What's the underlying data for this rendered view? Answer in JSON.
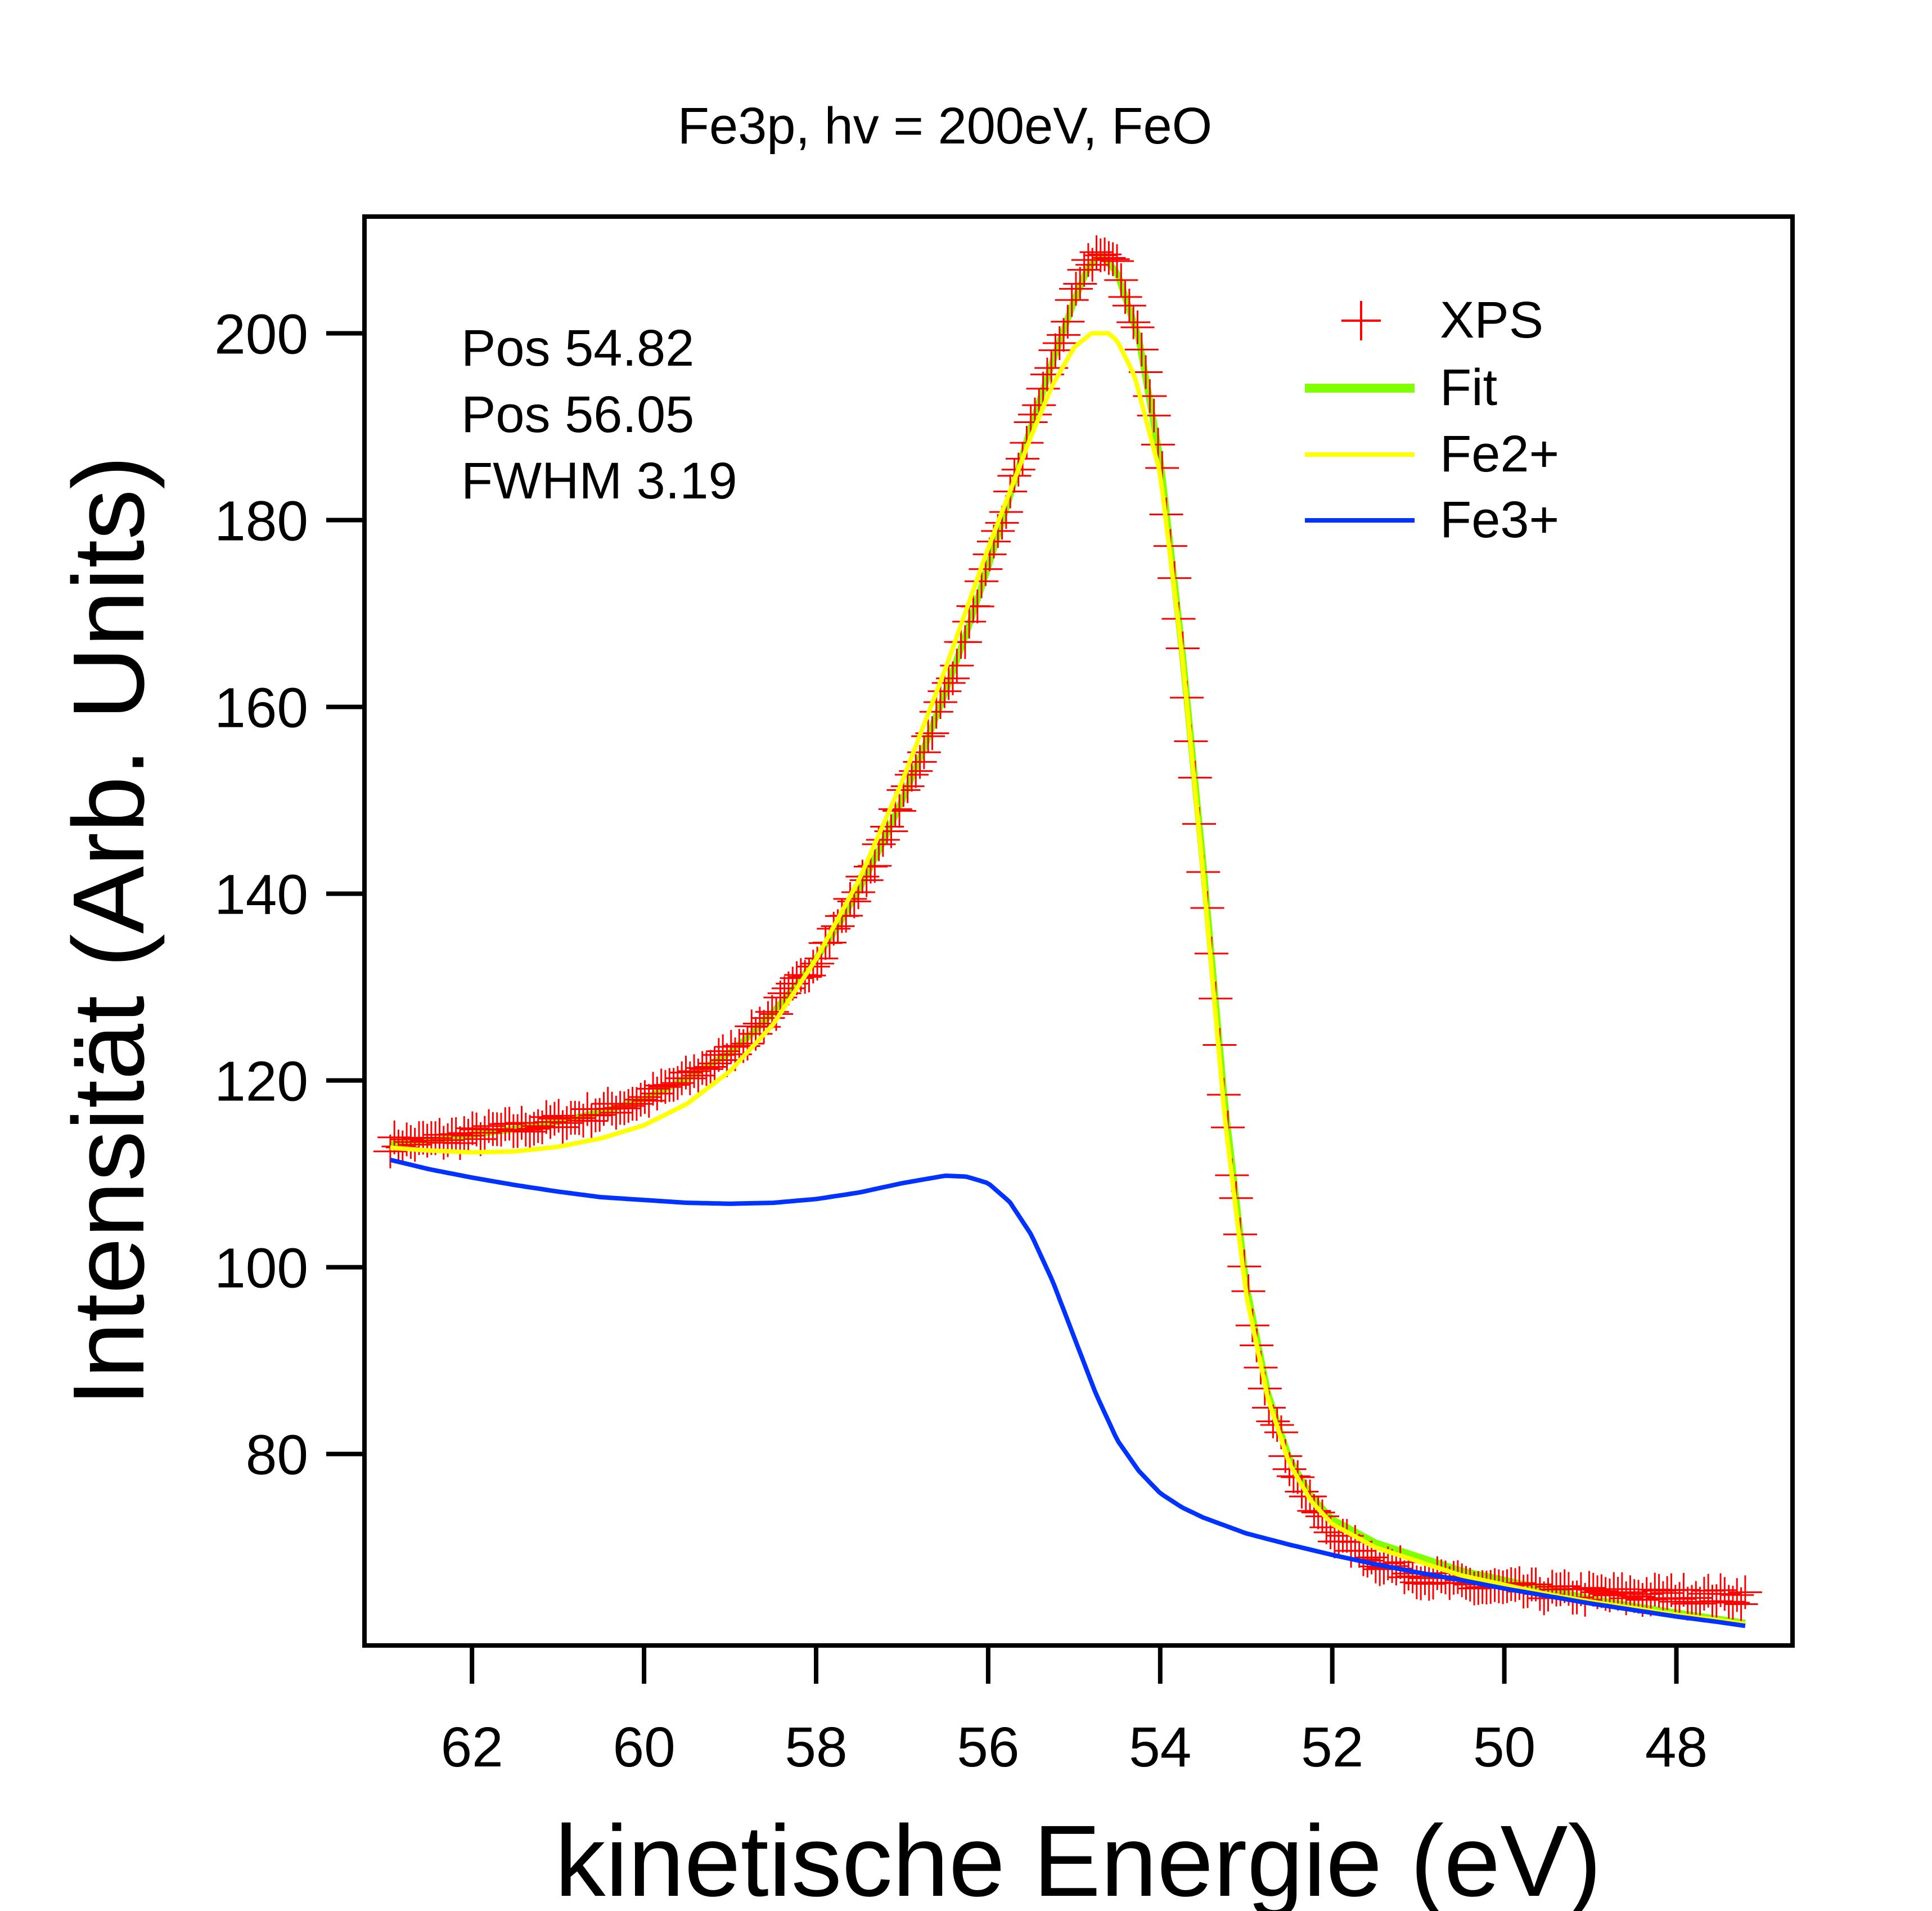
{
  "chart_data": {
    "type": "line",
    "title": "Fe3p, hv = 200eV, FeO",
    "xlabel": "kinetische Energie (eV)",
    "ylabel": "Intensität (Arb. Units)",
    "xlim": [
      63.25,
      46.65
    ],
    "ylim": [
      59.5,
      212.5
    ],
    "x_reversed": true,
    "grid": false,
    "xticks": [
      62,
      60,
      58,
      56,
      54,
      52,
      50,
      48
    ],
    "yticks": [
      80,
      100,
      120,
      140,
      160,
      180,
      200
    ],
    "annotations": [
      "Pos 54.82",
      "Pos 56.05",
      "FWHM 3.19"
    ],
    "legend": {
      "position": "top-right",
      "entries": [
        {
          "label": "XPS",
          "marker": "plus",
          "color": "#ff0000"
        },
        {
          "label": "Fit",
          "marker": "line",
          "color": "#80ff00"
        },
        {
          "label": "Fe2+",
          "marker": "line",
          "color": "#ffff00"
        },
        {
          "label": "Fe3+",
          "marker": "line",
          "color": "#0033ff"
        }
      ]
    },
    "series": [
      {
        "name": "XPS",
        "style": "markers",
        "color": "#ff0000",
        "x": [
          62.95,
          62.5,
          62.0,
          61.5,
          61.0,
          60.5,
          60.0,
          59.5,
          59.0,
          58.75,
          58.5,
          58.25,
          58.0,
          57.75,
          57.5,
          57.25,
          57.0,
          56.75,
          56.5,
          56.25,
          56.0,
          55.75,
          55.5,
          55.25,
          55.0,
          54.85,
          54.7,
          54.5,
          54.25,
          54.0,
          53.75,
          53.5,
          53.25,
          53.0,
          52.75,
          52.5,
          52.25,
          52.0,
          51.5,
          51.0,
          50.5,
          50.0,
          49.5,
          49.0,
          48.5,
          48.0,
          47.5,
          47.2
        ],
        "y": [
          113.2,
          113.5,
          114.2,
          114.8,
          115.6,
          116.6,
          118.0,
          120.2,
          123.0,
          125.0,
          127.3,
          130.0,
          133.0,
          136.5,
          140.5,
          145.0,
          150.0,
          155.5,
          161.5,
          168.0,
          175.0,
          182.5,
          190.0,
          197.0,
          203.5,
          207.0,
          209.0,
          207.0,
          200.0,
          187.0,
          167.0,
          143.0,
          117.0,
          98.0,
          86.0,
          79.0,
          74.5,
          71.5,
          68.5,
          67.0,
          66.0,
          65.5,
          65.2,
          65.0,
          64.9,
          64.8,
          64.7,
          64.7
        ]
      },
      {
        "name": "Fit",
        "style": "line",
        "color": "#80ff00",
        "x": [
          62.95,
          62.5,
          62.0,
          61.5,
          61.0,
          60.5,
          60.0,
          59.5,
          59.0,
          58.75,
          58.5,
          58.25,
          58.0,
          57.75,
          57.5,
          57.25,
          57.0,
          56.75,
          56.5,
          56.25,
          56.0,
          55.75,
          55.5,
          55.25,
          55.0,
          54.85,
          54.7,
          54.5,
          54.25,
          54.0,
          53.75,
          53.5,
          53.25,
          53.0,
          52.75,
          52.5,
          52.25,
          52.0,
          51.5,
          51.0,
          50.5,
          50.0,
          49.5,
          49.0,
          48.5,
          48.0,
          47.5,
          47.2
        ],
        "y": [
          113.2,
          113.5,
          114.2,
          114.8,
          115.6,
          116.6,
          118.0,
          120.2,
          123.0,
          125.0,
          127.3,
          130.0,
          133.0,
          136.5,
          140.5,
          145.0,
          150.0,
          155.5,
          161.5,
          168.0,
          175.0,
          182.5,
          190.0,
          197.0,
          203.5,
          206.8,
          208.5,
          206.5,
          199.5,
          186.5,
          166.5,
          143.0,
          117.5,
          98.0,
          86.5,
          79.5,
          75.5,
          73.0,
          70.5,
          69.0,
          67.5,
          66.5,
          65.5,
          64.5,
          63.7,
          63.0,
          62.3,
          61.9
        ]
      },
      {
        "name": "Fe2+",
        "style": "line",
        "color": "#ffff00",
        "x": [
          62.95,
          62.5,
          62.0,
          61.5,
          61.0,
          60.5,
          60.0,
          59.5,
          59.0,
          58.5,
          58.0,
          57.5,
          57.0,
          56.5,
          56.0,
          55.5,
          55.25,
          55.0,
          54.8,
          54.6,
          54.5,
          54.3,
          54.0,
          53.75,
          53.5,
          53.25,
          53.0,
          52.75,
          52.5,
          52.25,
          52.0,
          51.5,
          51.0,
          50.5,
          50.0,
          49.5,
          49.0,
          48.5,
          48.0,
          47.5,
          47.2
        ],
        "y": [
          112.8,
          112.5,
          112.3,
          112.4,
          112.9,
          113.8,
          115.2,
          117.5,
          121.0,
          126.0,
          133.0,
          141.5,
          152.0,
          164.0,
          177.0,
          189.0,
          194.5,
          198.5,
          200.0,
          200.0,
          199.2,
          195.5,
          185.0,
          166.0,
          142.0,
          116.0,
          97.0,
          86.0,
          79.0,
          75.0,
          72.5,
          70.0,
          68.5,
          67.0,
          66.0,
          65.0,
          64.2,
          63.5,
          62.8,
          62.2,
          61.8
        ]
      },
      {
        "name": "Fe3+",
        "style": "line",
        "color": "#0033ff",
        "x": [
          62.95,
          62.5,
          62.0,
          61.5,
          61.0,
          60.5,
          60.0,
          59.5,
          59.0,
          58.5,
          58.0,
          57.5,
          57.0,
          56.5,
          56.25,
          56.0,
          55.75,
          55.5,
          55.25,
          55.0,
          54.75,
          54.5,
          54.25,
          54.0,
          53.75,
          53.5,
          53.0,
          52.5,
          52.0,
          51.5,
          51.0,
          50.5,
          50.0,
          49.5,
          49.0,
          48.5,
          48.0,
          47.5,
          47.2
        ],
        "y": [
          111.5,
          110.5,
          109.6,
          108.8,
          108.1,
          107.5,
          107.2,
          106.9,
          106.8,
          106.9,
          107.3,
          108.0,
          109.0,
          109.8,
          109.7,
          109.0,
          107.0,
          103.5,
          98.5,
          92.5,
          86.5,
          81.5,
          78.2,
          75.8,
          74.3,
          73.2,
          71.5,
          70.3,
          69.2,
          68.2,
          67.3,
          66.5,
          65.6,
          64.8,
          64.0,
          63.3,
          62.6,
          62.0,
          61.6
        ]
      }
    ]
  }
}
